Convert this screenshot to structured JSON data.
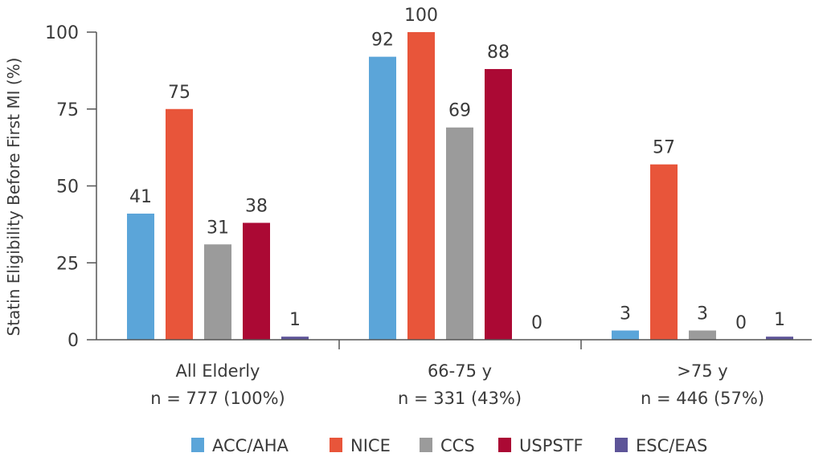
{
  "chart_data": {
    "type": "bar",
    "title": "",
    "ylabel": "Statin Eligibility Before First MI (%)",
    "xlabel": "",
    "ylim": [
      0,
      100
    ],
    "yticks": [
      0,
      25,
      50,
      75,
      100
    ],
    "grid": false,
    "legend_position": "bottom",
    "categories": [
      {
        "name": "All Elderly",
        "sub": "n = 777 (100%)"
      },
      {
        "name": "66-75 y",
        "sub": "n = 331 (43%)"
      },
      {
        "name": ">75 y",
        "sub": "n = 446 (57%)"
      }
    ],
    "series": [
      {
        "name": "ACC/AHA",
        "color": "#5ba5d9",
        "values": [
          41,
          92,
          3
        ]
      },
      {
        "name": "NICE",
        "color": "#e8553a",
        "values": [
          75,
          100,
          57
        ]
      },
      {
        "name": "CCS",
        "color": "#9b9b9b",
        "values": [
          31,
          69,
          3
        ]
      },
      {
        "name": "USPSTF",
        "color": "#ab0934",
        "values": [
          38,
          88,
          0
        ]
      },
      {
        "name": "ESC/EAS",
        "color": "#5d5498",
        "values": [
          1,
          0,
          1
        ]
      }
    ]
  }
}
